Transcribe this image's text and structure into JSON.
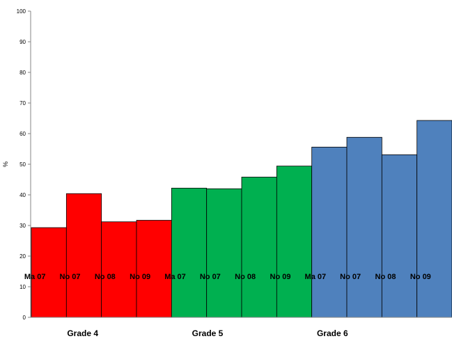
{
  "chart_data": {
    "type": "bar",
    "ylabel": "%",
    "ylim": [
      0,
      100
    ],
    "yticks": [
      "0",
      "10",
      "20",
      "30",
      "40",
      "50",
      "60",
      "70",
      "80",
      "90",
      "100"
    ],
    "bar_labels": [
      "Ma 07",
      "No 07",
      "No 08",
      "No 09",
      "Ma 07",
      "No 07",
      "No 08",
      "No 09",
      "Ma 07",
      "No 07",
      "No 08",
      "No 09"
    ],
    "values": [
      29.3,
      40.4,
      31.2,
      31.7,
      42.2,
      42.0,
      45.8,
      49.4,
      55.6,
      58.8,
      53.1,
      64.3
    ],
    "bar_colors": [
      "#ff0000",
      "#ff0000",
      "#ff0000",
      "#ff0000",
      "#00b050",
      "#00b050",
      "#00b050",
      "#00b050",
      "#4f81bd",
      "#4f81bd",
      "#4f81bd",
      "#4f81bd"
    ],
    "groups": [
      {
        "name": "Grade 4",
        "color": "#ff0000"
      },
      {
        "name": "Grade 5",
        "color": "#00b050"
      },
      {
        "name": "Grade 6",
        "color": "#4f81bd"
      }
    ],
    "grid": false
  }
}
